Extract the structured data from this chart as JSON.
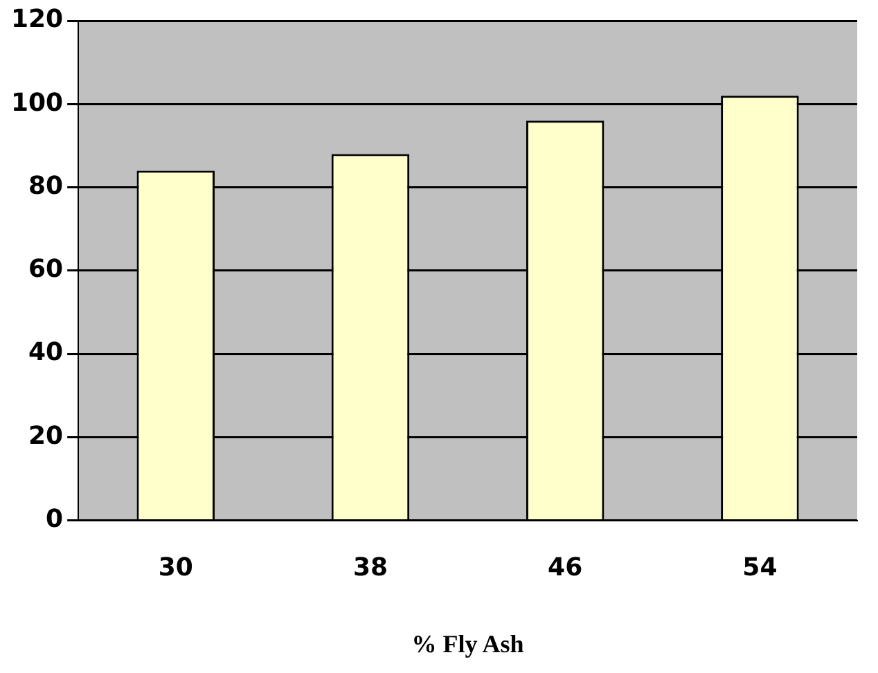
{
  "chart_data": {
    "type": "bar",
    "xlabel": "% Fly Ash",
    "categories": [
      "30",
      "38",
      "46",
      "54"
    ],
    "values": [
      84,
      88,
      96,
      102
    ],
    "color": "#ffffcc",
    "ylim": [
      0,
      120
    ],
    "yticks": [
      0,
      20,
      40,
      60,
      80,
      100,
      120
    ],
    "grid": "y",
    "legend": false
  }
}
